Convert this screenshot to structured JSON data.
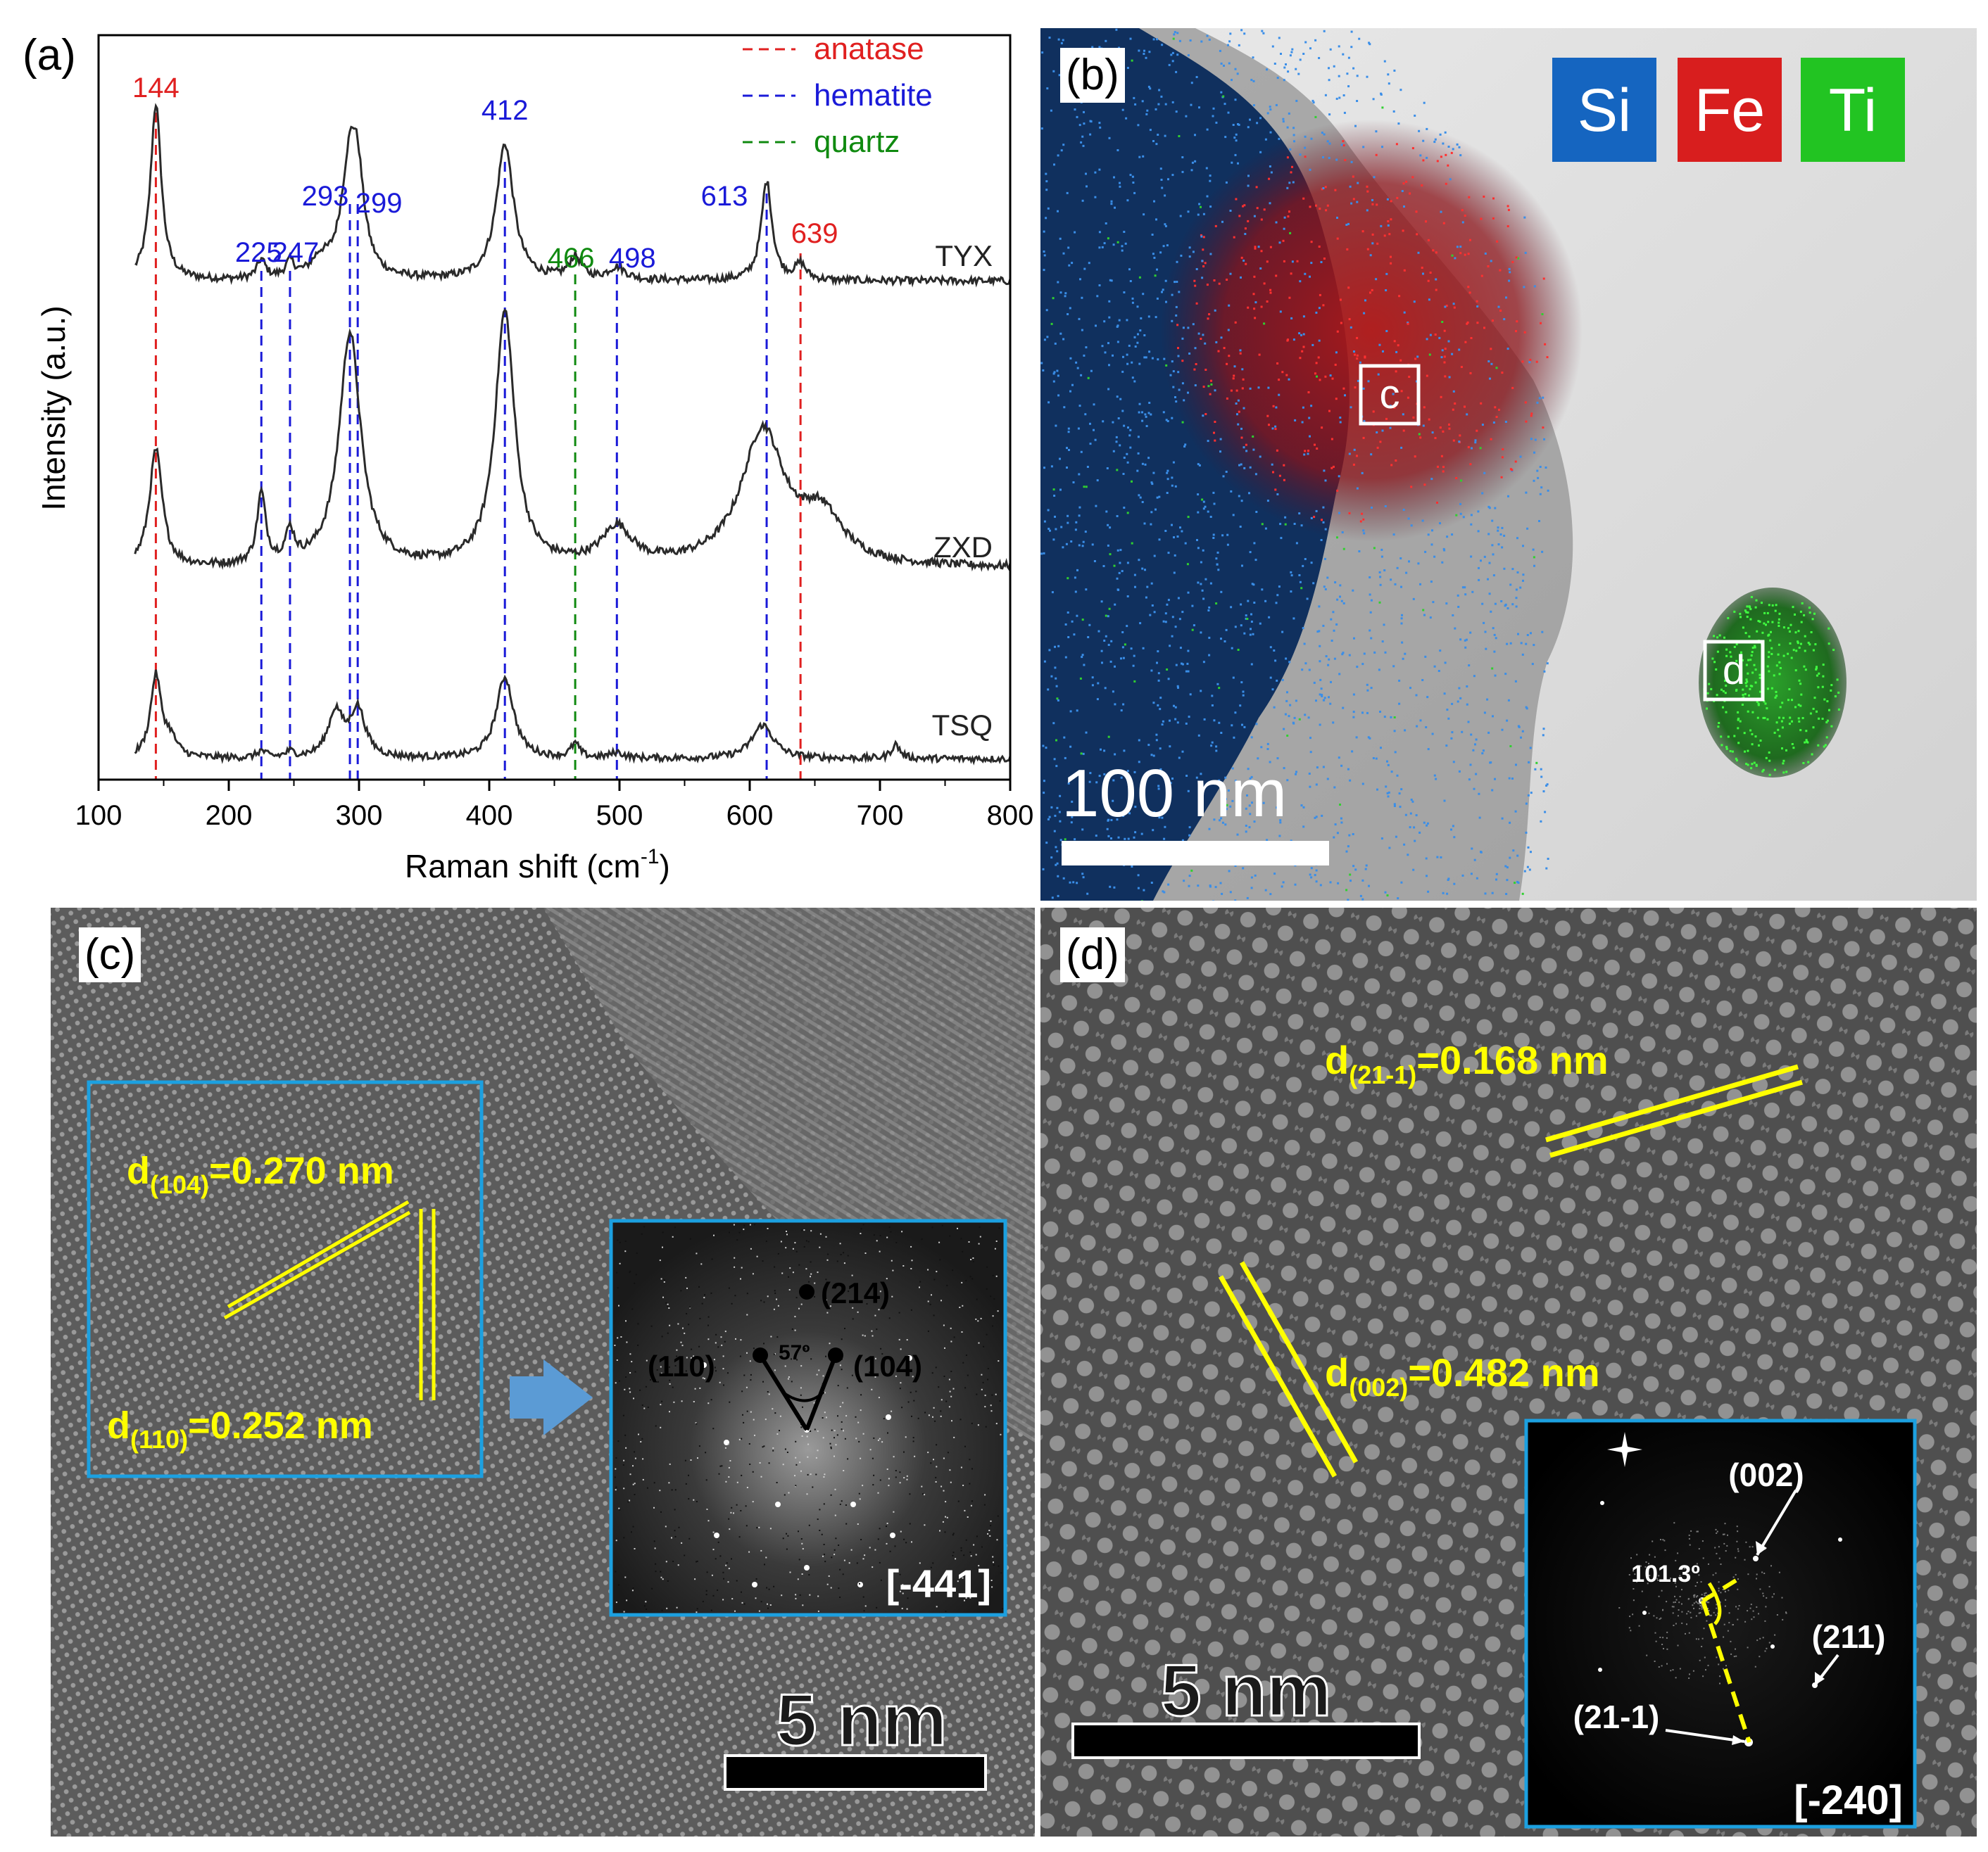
{
  "colors": {
    "anatase": "#e02020",
    "hematite": "#1a1ad8",
    "quartz": "#108a10",
    "annot_yellow": "#ffff00",
    "frame_blue": "#1ca0e0",
    "si": "#1565c0",
    "fe": "#d81e1e",
    "ti": "#22c422"
  },
  "panel_a": {
    "label": "(a)",
    "chart_data": {
      "type": "line",
      "title": "",
      "xlabel": "Raman shift (cm",
      "xlabel_sup": "-1",
      "xlabel_end": ")",
      "ylabel": "Intensity (a.u.)",
      "xlim": [
        100,
        800
      ],
      "xticks": [
        100,
        200,
        300,
        400,
        500,
        600,
        700,
        800
      ],
      "legend": [
        {
          "name": "anatase",
          "color": "#e02020"
        },
        {
          "name": "hematite",
          "color": "#1a1ad8"
        },
        {
          "name": "quartz",
          "color": "#108a10"
        }
      ],
      "reference_lines": [
        {
          "x": 144,
          "phase": "anatase",
          "label": "144"
        },
        {
          "x": 225,
          "phase": "hematite",
          "label": "225"
        },
        {
          "x": 247,
          "phase": "hematite",
          "label": "247"
        },
        {
          "x": 293,
          "phase": "hematite",
          "label": "293"
        },
        {
          "x": 299,
          "phase": "hematite",
          "label": "299"
        },
        {
          "x": 412,
          "phase": "hematite",
          "label": "412"
        },
        {
          "x": 466,
          "phase": "quartz",
          "label": "466"
        },
        {
          "x": 498,
          "phase": "hematite",
          "label": "498"
        },
        {
          "x": 613,
          "phase": "hematite",
          "label": "613"
        },
        {
          "x": 639,
          "phase": "anatase",
          "label": "639"
        }
      ],
      "series": [
        {
          "name": "TYX",
          "baseline": 0.8,
          "peaks": [
            {
              "x": 144,
              "height": 2.85,
              "width": 5
            },
            {
              "x": 225,
              "height": 0.3,
              "width": 4
            },
            {
              "x": 247,
              "height": 0.25,
              "width": 4
            },
            {
              "x": 270,
              "height": 0.25,
              "width": 8
            },
            {
              "x": 293,
              "height": 1.8,
              "width": 8
            },
            {
              "x": 299,
              "height": 1.1,
              "width": 6
            },
            {
              "x": 412,
              "height": 2.2,
              "width": 8
            },
            {
              "x": 466,
              "height": 0.35,
              "width": 6
            },
            {
              "x": 498,
              "height": 0.2,
              "width": 8
            },
            {
              "x": 613,
              "height": 1.6,
              "width": 5
            },
            {
              "x": 639,
              "height": 0.25,
              "width": 5
            }
          ]
        },
        {
          "name": "ZXD",
          "baseline": 1.0,
          "peaks": [
            {
              "x": 144,
              "height": 1.75,
              "width": 6
            },
            {
              "x": 225,
              "height": 1.05,
              "width": 4
            },
            {
              "x": 247,
              "height": 0.45,
              "width": 4
            },
            {
              "x": 293,
              "height": 3.5,
              "width": 10
            },
            {
              "x": 412,
              "height": 3.8,
              "width": 9
            },
            {
              "x": 498,
              "height": 0.55,
              "width": 14
            },
            {
              "x": 610,
              "height": 2.0,
              "width": 20
            },
            {
              "x": 655,
              "height": 0.7,
              "width": 20
            }
          ]
        },
        {
          "name": "TSQ",
          "baseline": 0.12,
          "peaks": [
            {
              "x": 144,
              "height": 1.45,
              "width": 5
            },
            {
              "x": 155,
              "height": 0.3,
              "width": 6
            },
            {
              "x": 225,
              "height": 0.12,
              "width": 4
            },
            {
              "x": 247,
              "height": 0.1,
              "width": 4
            },
            {
              "x": 282,
              "height": 0.8,
              "width": 7
            },
            {
              "x": 299,
              "height": 0.85,
              "width": 7
            },
            {
              "x": 412,
              "height": 1.45,
              "width": 8
            },
            {
              "x": 466,
              "height": 0.25,
              "width": 4
            },
            {
              "x": 498,
              "height": 0.1,
              "width": 6
            },
            {
              "x": 610,
              "height": 0.6,
              "width": 10
            },
            {
              "x": 712,
              "height": 0.25,
              "width": 4
            }
          ]
        }
      ]
    }
  },
  "panel_b": {
    "label": "(b)",
    "legend": [
      "Si",
      "Fe",
      "Ti"
    ],
    "box_c": "c",
    "box_d": "d",
    "scale_bar": "100 nm"
  },
  "panel_c": {
    "label": "(c)",
    "d104_base": "d",
    "d104_sub": "(104)",
    "d104_value": "=0.270 nm",
    "d110_base": "d",
    "d110_sub": "(110)",
    "d110_value": "=0.252 nm",
    "spot_214": "(214)",
    "spot_110": "(110)",
    "spot_104": "(104)",
    "angle": "57º",
    "zone_axis": "[-441]",
    "scale_bar": "5 nm"
  },
  "panel_d": {
    "label": "(d)",
    "d21_base": "d",
    "d21_sub": "(21-1)",
    "d21_value": "=0.168 nm",
    "d002_base": "d",
    "d002_sub": "(002)",
    "d002_value": "=0.482 nm",
    "spot_002": "(002)",
    "spot_211": "(211)",
    "spot_21m1": "(21-1)",
    "angle": "101.3º",
    "zone_axis": "[-240]",
    "scale_bar": "5 nm"
  }
}
